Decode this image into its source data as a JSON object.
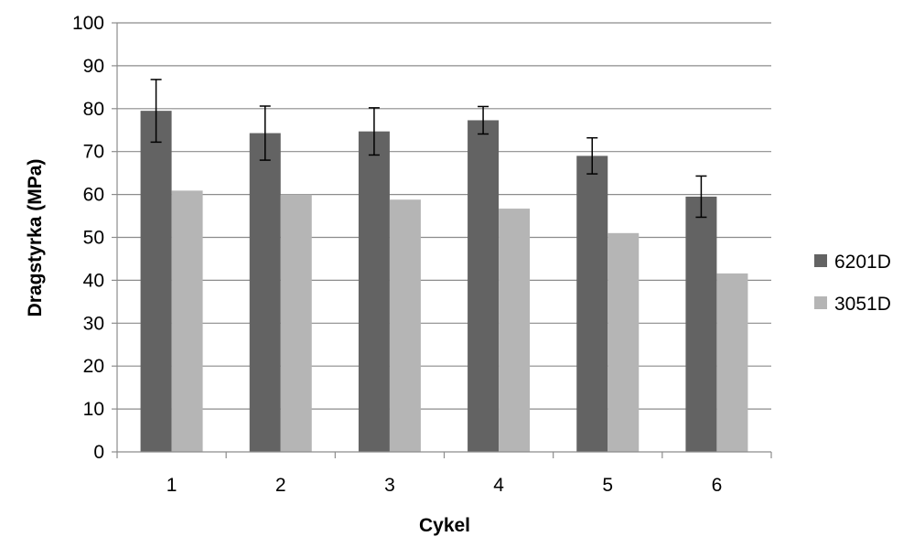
{
  "chart_data": {
    "type": "bar",
    "categories": [
      "1",
      "2",
      "3",
      "4",
      "5",
      "6"
    ],
    "series": [
      {
        "name": "6201D",
        "values": [
          79.5,
          74.3,
          74.7,
          77.3,
          69.0,
          59.5
        ],
        "error": [
          7.3,
          6.3,
          5.5,
          3.2,
          4.2,
          4.8
        ],
        "color": "#636363"
      },
      {
        "name": "3051D",
        "values": [
          60.9,
          60.0,
          58.8,
          56.7,
          51.0,
          41.6
        ],
        "color": "#b5b5b5"
      }
    ],
    "xlabel": "Cykel",
    "ylabel": "Dragstyrka (MPa)",
    "ylim": [
      0,
      100
    ],
    "yticks": [
      0,
      10,
      20,
      30,
      40,
      50,
      60,
      70,
      80,
      90,
      100
    ],
    "grid": true,
    "legend": "right"
  }
}
